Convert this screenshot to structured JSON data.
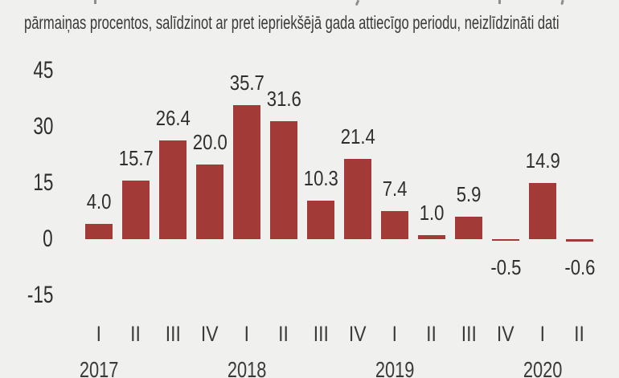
{
  "header": {
    "subtitle": "pārmaiņas procentos, salīdzinot ar pret iepriekšējā gada attiecīgo periodu, neizlīdzināti dati"
  },
  "colors": {
    "background": "#f0f0ee",
    "bar": "#a23a37",
    "text": "#3a3a3a"
  },
  "chart_data": {
    "type": "bar",
    "subtitle": "pārmaiņas procentos, salīdzinot ar pret iepriekšējā gada attiecīgo periodu, neizlīdzināti dati",
    "values": [
      4.0,
      15.7,
      26.4,
      20.0,
      35.7,
      31.6,
      10.3,
      21.4,
      7.4,
      1.0,
      5.9,
      -0.5,
      14.9,
      -0.6
    ],
    "quarters": [
      "I",
      "II",
      "III",
      "IV",
      "I",
      "II",
      "III",
      "IV",
      "I",
      "II",
      "III",
      "IV",
      "I",
      "II"
    ],
    "years": [
      {
        "label": "2017",
        "quarter_index": 0
      },
      {
        "label": "2018",
        "quarter_index": 4
      },
      {
        "label": "2019",
        "quarter_index": 8
      },
      {
        "label": "2020",
        "quarter_index": 12
      }
    ],
    "yticks": [
      45,
      30,
      15,
      0,
      -15
    ],
    "ylim": [
      -15,
      45
    ],
    "grid": false,
    "axis_lines": false,
    "value_labels": true,
    "value_label_decimals": 1,
    "bar_color": "#a23a37",
    "legend": "none"
  }
}
